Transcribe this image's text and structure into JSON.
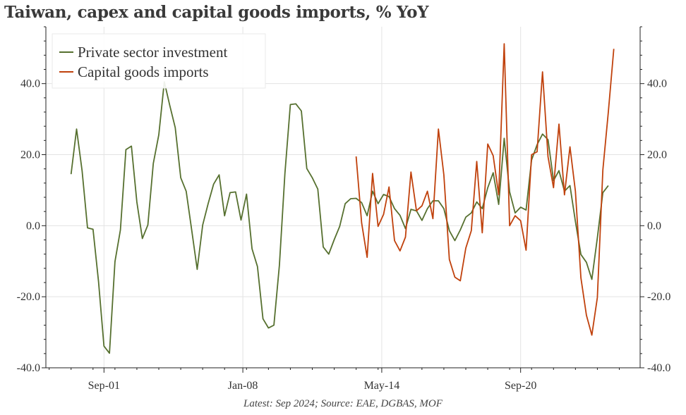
{
  "title": "Taiwan, capex and capital goods imports, % YoY",
  "footer": "Latest: Sep 2024; Source: EAE, DGBAS, MOF",
  "chart_data": {
    "type": "line",
    "title": "Taiwan, capex and capital goods imports, % YoY",
    "x_start": "2000Q1",
    "x_frequency": "quarterly",
    "x_ticks": [
      {
        "label": "Sep-01",
        "index": 6
      },
      {
        "label": "Jan-08",
        "index": 31.33
      },
      {
        "label": "May-14",
        "index": 56.67
      },
      {
        "label": "Sep-20",
        "index": 82
      }
    ],
    "y_ticks": [
      -40,
      -20,
      0,
      20,
      40
    ],
    "y_tick_labels": [
      "-40.0",
      "-20.0",
      "0.0",
      "20.0",
      "40.0"
    ],
    "ylim": [
      -40,
      56
    ],
    "xlim_index": [
      -4.6,
      103.8
    ],
    "grid": true,
    "legend_position": "top-left",
    "dual_axis_labels": true,
    "series": [
      {
        "name": "Private sector investment",
        "color": "#56702f",
        "start_index": 0,
        "values": [
          14.5,
          27.2,
          15.5,
          -0.6,
          -1.0,
          -15.7,
          -33.9,
          -35.9,
          -10.1,
          -1.2,
          21.4,
          22.4,
          6.7,
          -3.6,
          0.2,
          17.5,
          25.6,
          40.5,
          33.9,
          27.6,
          13.5,
          9.7,
          -1.2,
          -12.3,
          0.2,
          6.2,
          11.7,
          14.3,
          2.8,
          9.3,
          9.5,
          1.6,
          8.9,
          -6.5,
          -11.5,
          -26.2,
          -28.8,
          -28.0,
          -11.1,
          14.7,
          34.1,
          34.3,
          32.3,
          16.1,
          13.5,
          10.3,
          -6.0,
          -8.0,
          -3.9,
          -0.2,
          6.2,
          7.6,
          7.7,
          6.5,
          2.8,
          9.7,
          6.2,
          8.8,
          8.2,
          4.8,
          2.9,
          -0.8,
          4.6,
          4.2,
          1.5,
          4.8,
          7.0,
          7.0,
          4.8,
          -1.4,
          -4.2,
          -1.2,
          2.4,
          3.6,
          6.7,
          4.8,
          10.7,
          14.9,
          6.0,
          24.6,
          9.5,
          3.6,
          5.2,
          4.4,
          18.5,
          22.8,
          25.8,
          24.2,
          12.7,
          15.5,
          9.7,
          11.3,
          1.2,
          -8.1,
          -10.3,
          -15.1,
          -3.4,
          9.3,
          11.3
        ]
      },
      {
        "name": "Capital goods imports",
        "color": "#c0410c",
        "start_index": 52,
        "values": [
          19.5,
          0.8,
          -8.9,
          14.7,
          -0.2,
          3.2,
          10.9,
          -4.2,
          -7.1,
          -3.2,
          15.1,
          4.2,
          5.6,
          9.7,
          2.0,
          27.2,
          14.3,
          -9.5,
          -14.5,
          -15.5,
          -6.3,
          -1.4,
          18.1,
          -2.0,
          23.0,
          19.7,
          8.7,
          51.2,
          0.0,
          2.8,
          1.4,
          -6.9,
          20.0,
          20.8,
          43.3,
          19.4,
          10.7,
          28.6,
          8.7,
          22.2,
          9.7,
          -14.7,
          -25.2,
          -30.8,
          -20.2,
          15.7,
          31.9,
          49.8
        ]
      }
    ]
  }
}
